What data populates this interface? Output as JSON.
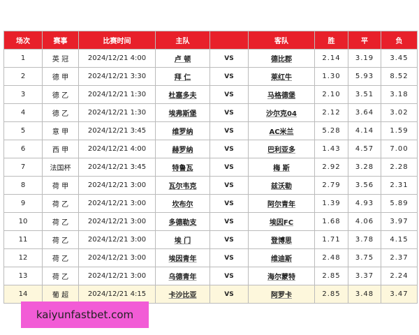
{
  "table": {
    "header": [
      "场次",
      "赛事",
      "比赛时间",
      "主队",
      "",
      "客队",
      "胜",
      "平",
      "负"
    ],
    "rows": [
      [
        "1",
        "英 冠",
        "2024/12/21 4:00",
        "卢 顿",
        "VS",
        "德比郡",
        "2.14",
        "3.19",
        "3.45"
      ],
      [
        "2",
        "德 甲",
        "2024/12/21 3:30",
        "拜 仁",
        "VS",
        "莱红牛",
        "1.30",
        "5.93",
        "8.52"
      ],
      [
        "3",
        "德 乙",
        "2024/12/21 1:30",
        "杜塞多夫",
        "VS",
        "马格德堡",
        "2.10",
        "3.51",
        "3.18"
      ],
      [
        "4",
        "德 乙",
        "2024/12/21 1:30",
        "埃弗斯堡",
        "VS",
        "沙尔克04",
        "2.12",
        "3.64",
        "3.02"
      ],
      [
        "5",
        "意 甲",
        "2024/12/21 3:45",
        "维罗纳",
        "VS",
        "AC米兰",
        "5.28",
        "4.14",
        "1.59"
      ],
      [
        "6",
        "西 甲",
        "2024/12/21 4:00",
        "赫罗纳",
        "VS",
        "巴利亚多",
        "1.43",
        "4.57",
        "7.00"
      ],
      [
        "7",
        "法国杯",
        "2024/12/21 3:45",
        "特鲁瓦",
        "VS",
        "梅 斯",
        "2.92",
        "3.28",
        "2.28"
      ],
      [
        "8",
        "荷 甲",
        "2024/12/21 3:00",
        "瓦尔韦克",
        "VS",
        "兹沃勒",
        "2.79",
        "3.56",
        "2.31"
      ],
      [
        "9",
        "荷 乙",
        "2024/12/21 3:00",
        "坎布尔",
        "VS",
        "阿尔青年",
        "1.39",
        "4.93",
        "5.89"
      ],
      [
        "10",
        "荷 乙",
        "2024/12/21 3:00",
        "多德勒支",
        "VS",
        "埃因FC",
        "1.68",
        "4.06",
        "3.97"
      ],
      [
        "11",
        "荷 乙",
        "2024/12/21 3:00",
        "埃 门",
        "VS",
        "登博思",
        "1.71",
        "3.78",
        "4.15"
      ],
      [
        "12",
        "荷 乙",
        "2024/12/21 3:00",
        "埃因青年",
        "VS",
        "维迪斯",
        "2.48",
        "3.75",
        "2.37"
      ],
      [
        "13",
        "荷 乙",
        "2024/12/21 3:00",
        "乌德青年",
        "VS",
        "海尔蒙特",
        "2.85",
        "3.37",
        "2.24"
      ],
      [
        "14",
        "葡 超",
        "2024/12/21 4:15",
        "卡沙比亚",
        "VS",
        "阿罗卡",
        "2.85",
        "3.48",
        "3.47"
      ]
    ]
  },
  "watermark": {
    "text": "kaiyunfastbet.com"
  }
}
